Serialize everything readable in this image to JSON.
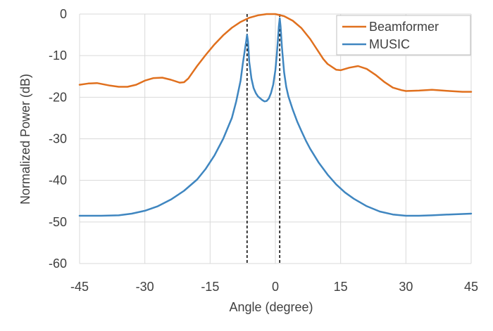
{
  "chart_data": {
    "type": "line",
    "title": "",
    "xlabel": "Angle (degree)",
    "ylabel": "Normalized Power (dB)",
    "xlim": [
      -45,
      45
    ],
    "ylim": [
      -60,
      0
    ],
    "xticks": [
      -45,
      -30,
      -15,
      0,
      15,
      30,
      45
    ],
    "yticks": [
      0,
      -10,
      -20,
      -30,
      -40,
      -50,
      -60
    ],
    "grid": true,
    "legend_position": "top-right",
    "vlines": [
      -6.5,
      1
    ],
    "series": [
      {
        "name": "Beamformer",
        "color": "#E0701E",
        "x": [
          -45,
          -43,
          -41,
          -38,
          -36,
          -34,
          -32,
          -30,
          -28,
          -26,
          -24,
          -22,
          -21,
          -20,
          -19,
          -18,
          -16,
          -14,
          -12,
          -10,
          -8,
          -6,
          -4,
          -2,
          0,
          2,
          4,
          6,
          8,
          9,
          10,
          11,
          12,
          14,
          15,
          17,
          19,
          21,
          23,
          25,
          27,
          29,
          30,
          33,
          36,
          40,
          43,
          45
        ],
        "values": [
          -17,
          -16.7,
          -16.6,
          -17.2,
          -17.5,
          -17.5,
          -17.0,
          -16.0,
          -15.4,
          -15.3,
          -15.8,
          -16.5,
          -16.4,
          -15.5,
          -14.0,
          -12.5,
          -9.8,
          -7.3,
          -5.1,
          -3.3,
          -1.9,
          -0.9,
          -0.3,
          0,
          0,
          -0.5,
          -1.6,
          -3.4,
          -6.0,
          -7.6,
          -9.2,
          -10.8,
          -12.0,
          -13.4,
          -13.5,
          -12.9,
          -12.5,
          -13.2,
          -14.6,
          -16.3,
          -17.7,
          -18.3,
          -18.5,
          -18.4,
          -18.2,
          -18.5,
          -18.7,
          -18.7
        ]
      },
      {
        "name": "MUSIC",
        "color": "#3F86C0",
        "x": [
          -45,
          -40,
          -36,
          -33,
          -30,
          -27,
          -24,
          -21,
          -18,
          -16,
          -14,
          -12,
          -10,
          -9,
          -8,
          -7.5,
          -7,
          -6.7,
          -6.5,
          -6.3,
          -6,
          -5.5,
          -5,
          -4.5,
          -4,
          -3,
          -2.5,
          -2,
          -1.5,
          -1,
          -0.5,
          0,
          0.3,
          0.6,
          0.8,
          1,
          1.2,
          1.5,
          2,
          2.5,
          3,
          4,
          5,
          6,
          7,
          8,
          10,
          12,
          14,
          16,
          18,
          21,
          24,
          27,
          30,
          33,
          36,
          40,
          45
        ],
        "values": [
          -48.5,
          -48.5,
          -48.4,
          -48.0,
          -47.3,
          -46.2,
          -44.6,
          -42.5,
          -39.8,
          -37.2,
          -34.0,
          -30.0,
          -25.0,
          -21.0,
          -16.0,
          -12.0,
          -8.5,
          -6.5,
          -5.0,
          -6.5,
          -11.5,
          -15.5,
          -17.8,
          -19.0,
          -19.8,
          -20.7,
          -21.0,
          -20.9,
          -20.3,
          -19.0,
          -17.0,
          -13.5,
          -10.0,
          -6.0,
          -3.0,
          -1.0,
          -3.0,
          -8.0,
          -14.0,
          -17.5,
          -19.8,
          -23.0,
          -25.8,
          -28.2,
          -30.4,
          -32.4,
          -35.8,
          -38.6,
          -41.0,
          -42.9,
          -44.4,
          -46.2,
          -47.5,
          -48.2,
          -48.5,
          -48.5,
          -48.4,
          -48.2,
          -48.0
        ]
      }
    ]
  }
}
